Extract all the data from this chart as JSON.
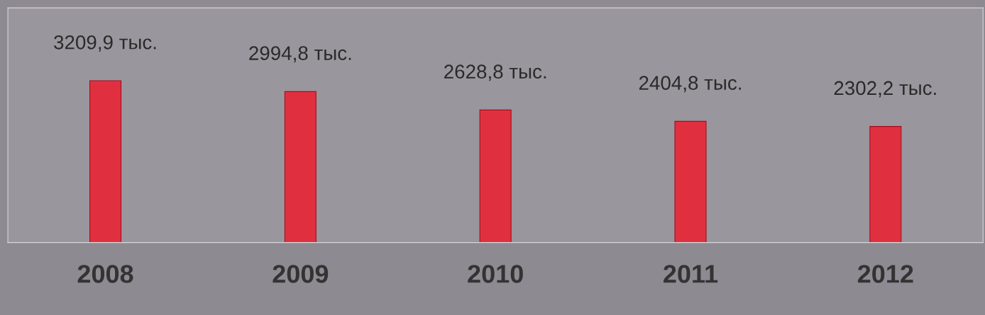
{
  "chart_data": {
    "type": "bar",
    "categories": [
      "2008",
      "2009",
      "2010",
      "2011",
      "2012"
    ],
    "values": [
      3209.9,
      2994.8,
      2628.8,
      2404.8,
      2302.2
    ],
    "value_labels": [
      "3209,9 тыс.",
      "2994,8 тыс.",
      "2628,8 тыс.",
      "2404,8 тыс.",
      "2302,2 тыс."
    ],
    "color": "#e0303f",
    "tick_labels": "x",
    "grid": false,
    "legend": false
  }
}
